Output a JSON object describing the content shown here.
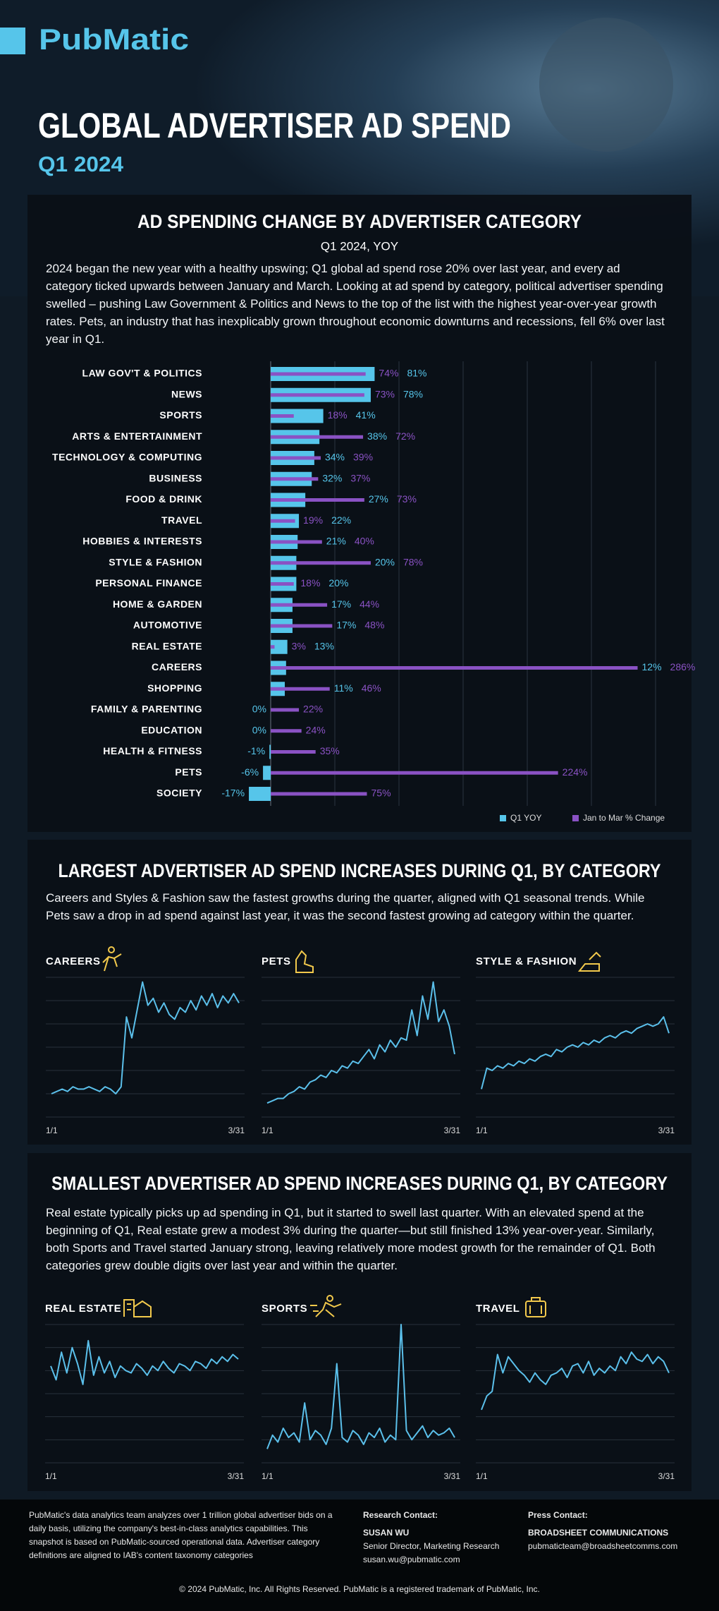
{
  "header": {
    "logo": "PubMatic",
    "title": "GLOBAL ADVERTISER AD SPEND",
    "subtitle": "Q1 2024"
  },
  "chart_data": [
    {
      "type": "hbar",
      "title": "AD SPENDING CHANGE BY ADVERTISER CATEGORY",
      "subtitle": "Q1 2024, YOY",
      "description": "2024 began the new year with a healthy upswing; Q1 global ad spend rose 20% over last year, and every ad category ticked upwards between January and March. Looking at ad spend by category, political advertiser spending swelled – pushing Law Government & Politics and News to the top of the list with the highest year-over-year growth rates. Pets, an industry that has inexplicably grown throughout economic downturns and recessions, fell 6% over last year in Q1.",
      "categories": [
        "LAW GOV'T & POLITICS",
        "NEWS",
        "SPORTS",
        "ARTS & ENTERTAINMENT",
        "TECHNOLOGY & COMPUTING",
        "BUSINESS",
        "FOOD & DRINK",
        "TRAVEL",
        "HOBBIES & INTERESTS",
        "STYLE & FASHION",
        "PERSONAL FINANCE",
        "HOME & GARDEN",
        "AUTOMOTIVE",
        "REAL ESTATE",
        "CAREERS",
        "SHOPPING",
        "FAMILY & PARENTING",
        "EDUCATION",
        "HEALTH & FITNESS",
        "PETS",
        "SOCIETY"
      ],
      "series": [
        {
          "name": "Q1 YOY",
          "color": "#56c5ea",
          "values": [
            81,
            78,
            41,
            38,
            34,
            32,
            27,
            22,
            21,
            20,
            20,
            17,
            17,
            13,
            12,
            11,
            0,
            0,
            -1,
            -6,
            -17
          ],
          "value_labels": [
            "81%",
            "78%",
            "41%",
            "38%",
            "34%",
            "32%",
            "27%",
            "22%",
            "21%",
            "20%",
            "20%",
            "17%",
            "17%",
            "13%",
            "12%",
            "11%",
            "0%",
            "0%",
            "-1%",
            "-6%",
            "-17%"
          ]
        },
        {
          "name": "Jan to Mar % Change",
          "color": "#8a52c4",
          "values": [
            74,
            73,
            18,
            72,
            39,
            37,
            73,
            19,
            40,
            78,
            18,
            44,
            48,
            3,
            286,
            46,
            22,
            24,
            35,
            224,
            75
          ],
          "value_labels": [
            "74%",
            "73%",
            "18%",
            "72%",
            "39%",
            "37%",
            "73%",
            "19%",
            "40%",
            "78%",
            "18%",
            "44%",
            "48%",
            "3%",
            "286%",
            "46%",
            "22%",
            "24%",
            "35%",
            "224%",
            "75%"
          ]
        }
      ],
      "xlim": [
        -50,
        300
      ],
      "xticks": [
        0,
        50,
        100,
        150,
        200,
        250,
        300
      ],
      "grid": true,
      "legend": "bottom-right"
    },
    {
      "type": "line",
      "title": "CAREERS",
      "color": "#5bc0eb",
      "ylim": [
        0,
        6
      ],
      "yticks": [
        0,
        1,
        2,
        3,
        4,
        5,
        6
      ],
      "grid": true,
      "categories": [
        "1/1",
        null,
        null,
        null,
        null,
        null,
        null,
        null,
        null,
        null,
        null,
        null,
        null,
        null,
        null,
        null,
        null,
        null,
        null,
        null,
        null,
        null,
        null,
        null,
        null,
        null,
        null,
        null,
        null,
        null,
        null,
        null,
        null,
        null,
        null,
        "3/31"
      ],
      "values": [
        1.0,
        1.1,
        1.2,
        1.1,
        1.3,
        1.2,
        1.2,
        1.3,
        1.2,
        1.1,
        1.3,
        1.2,
        1.0,
        1.3,
        4.3,
        3.4,
        4.6,
        5.8,
        4.8,
        5.1,
        4.5,
        4.9,
        4.4,
        4.2,
        4.7,
        4.5,
        5.0,
        4.6,
        5.2,
        4.8,
        5.3,
        4.7,
        5.2,
        4.9,
        5.3,
        4.9
      ]
    },
    {
      "type": "line",
      "title": "PETS",
      "color": "#5bc0eb",
      "ylim": [
        0,
        6
      ],
      "yticks": [
        0,
        1,
        2,
        3,
        4,
        5,
        6
      ],
      "grid": true,
      "categories": [
        "1/1",
        null,
        null,
        null,
        null,
        null,
        null,
        null,
        null,
        null,
        null,
        null,
        null,
        null,
        null,
        null,
        null,
        null,
        null,
        null,
        null,
        null,
        null,
        null,
        null,
        null,
        null,
        null,
        null,
        null,
        null,
        null,
        null,
        null,
        null,
        "3/31"
      ],
      "values": [
        0.6,
        0.7,
        0.8,
        0.8,
        1.0,
        1.1,
        1.3,
        1.2,
        1.5,
        1.6,
        1.8,
        1.7,
        2.0,
        1.9,
        2.2,
        2.1,
        2.4,
        2.3,
        2.6,
        2.9,
        2.5,
        3.1,
        2.8,
        3.3,
        3.0,
        3.4,
        3.3,
        4.6,
        3.5,
        5.2,
        4.2,
        5.8,
        4.1,
        4.6,
        3.9,
        2.7
      ]
    },
    {
      "type": "line",
      "title": "STYLE & FASHION",
      "color": "#5bc0eb",
      "ylim": [
        0,
        6
      ],
      "yticks": [
        0,
        1,
        2,
        3,
        4,
        5,
        6
      ],
      "grid": true,
      "categories": [
        "1/1",
        null,
        null,
        null,
        null,
        null,
        null,
        null,
        null,
        null,
        null,
        null,
        null,
        null,
        null,
        null,
        null,
        null,
        null,
        null,
        null,
        null,
        null,
        null,
        null,
        null,
        null,
        null,
        null,
        null,
        null,
        null,
        null,
        null,
        null,
        "3/31"
      ],
      "values": [
        1.2,
        2.1,
        2.0,
        2.2,
        2.1,
        2.3,
        2.2,
        2.4,
        2.3,
        2.5,
        2.4,
        2.6,
        2.7,
        2.6,
        2.9,
        2.8,
        3.0,
        3.1,
        3.0,
        3.2,
        3.1,
        3.3,
        3.2,
        3.4,
        3.5,
        3.4,
        3.6,
        3.7,
        3.6,
        3.8,
        3.9,
        4.0,
        3.9,
        4.0,
        4.3,
        3.6
      ]
    },
    {
      "type": "line",
      "title": "REAL ESTATE",
      "color": "#5bc0eb",
      "ylim": [
        0,
        6
      ],
      "yticks": [
        0,
        1,
        2,
        3,
        4,
        5,
        6
      ],
      "grid": true,
      "categories": [
        "1/1",
        null,
        null,
        null,
        null,
        null,
        null,
        null,
        null,
        null,
        null,
        null,
        null,
        null,
        null,
        null,
        null,
        null,
        null,
        null,
        null,
        null,
        null,
        null,
        null,
        null,
        null,
        null,
        null,
        null,
        null,
        null,
        null,
        null,
        null,
        "3/31"
      ],
      "values": [
        4.2,
        3.6,
        4.8,
        3.9,
        5.0,
        4.3,
        3.4,
        5.3,
        3.8,
        4.6,
        3.9,
        4.4,
        3.7,
        4.2,
        4.0,
        3.9,
        4.3,
        4.1,
        3.8,
        4.2,
        4.0,
        4.4,
        4.1,
        3.9,
        4.3,
        4.2,
        4.0,
        4.4,
        4.3,
        4.1,
        4.5,
        4.3,
        4.6,
        4.4,
        4.7,
        4.5
      ]
    },
    {
      "type": "line",
      "title": "SPORTS",
      "color": "#5bc0eb",
      "ylim": [
        0,
        6
      ],
      "yticks": [
        0,
        1,
        2,
        3,
        4,
        5,
        6
      ],
      "grid": true,
      "categories": [
        "1/1",
        null,
        null,
        null,
        null,
        null,
        null,
        null,
        null,
        null,
        null,
        null,
        null,
        null,
        null,
        null,
        null,
        null,
        null,
        null,
        null,
        null,
        null,
        null,
        null,
        null,
        null,
        null,
        null,
        null,
        null,
        null,
        null,
        null,
        null,
        "3/31"
      ],
      "values": [
        0.6,
        1.2,
        0.9,
        1.5,
        1.1,
        1.3,
        0.9,
        2.6,
        1.0,
        1.4,
        1.2,
        0.8,
        1.5,
        4.3,
        1.1,
        0.9,
        1.4,
        1.2,
        0.8,
        1.3,
        1.1,
        1.5,
        0.9,
        1.2,
        1.0,
        6.0,
        1.4,
        1.0,
        1.3,
        1.6,
        1.1,
        1.4,
        1.2,
        1.3,
        1.5,
        1.1
      ]
    },
    {
      "type": "line",
      "title": "TRAVEL",
      "color": "#5bc0eb",
      "ylim": [
        0,
        6
      ],
      "yticks": [
        0,
        1,
        2,
        3,
        4,
        5,
        6
      ],
      "grid": true,
      "categories": [
        "1/1",
        null,
        null,
        null,
        null,
        null,
        null,
        null,
        null,
        null,
        null,
        null,
        null,
        null,
        null,
        null,
        null,
        null,
        null,
        null,
        null,
        null,
        null,
        null,
        null,
        null,
        null,
        null,
        null,
        null,
        null,
        null,
        null,
        null,
        null,
        "3/31"
      ],
      "values": [
        2.3,
        2.9,
        3.1,
        4.7,
        3.9,
        4.6,
        4.3,
        4.0,
        3.8,
        3.5,
        3.9,
        3.6,
        3.4,
        3.8,
        3.9,
        4.1,
        3.7,
        4.2,
        4.3,
        3.9,
        4.4,
        3.8,
        4.1,
        3.9,
        4.2,
        4.0,
        4.6,
        4.3,
        4.8,
        4.5,
        4.4,
        4.7,
        4.3,
        4.6,
        4.4,
        3.9
      ]
    }
  ],
  "sections": [
    {
      "title": "LARGEST ADVERTISER AD SPEND INCREASES DURING Q1, BY CATEGORY",
      "text": "Careers and Styles & Fashion saw the fastest growths during the quarter, aligned with Q1 seasonal trends. While Pets saw a drop in ad spend against last year, it was the second fastest growing ad category within the quarter."
    },
    {
      "title": "SMALLEST ADVERTISER AD SPEND INCREASES DURING Q1, BY CATEGORY",
      "text": "Real estate typically picks up ad spending in Q1, but it started to swell last quarter. With an elevated spend at the beginning of Q1, Real estate grew a modest 3% during the quarter—but still finished 13% year-over-year. Similarly, both Sports and Travel started January strong, leaving relatively more modest growth for the remainder of Q1. Both categories grew double digits over last year and within the quarter."
    }
  ],
  "footer": {
    "about": "PubMatic's data analytics team analyzes over 1 trillion global advertiser bids on a daily basis, utilizing the company's best-in-class analytics capabilities. This snapshot is based on PubMatic-sourced operational data. Advertiser category definitions are aligned to IAB's content taxonomy categories",
    "research": {
      "heading": "Research Contact:",
      "name": "SUSAN WU",
      "role": "Senior Director, Marketing Research",
      "email": "susan.wu@pubmatic.com"
    },
    "press": {
      "heading": "Press Contact:",
      "name": "BROADSHEET COMMUNICATIONS",
      "email": "pubmaticteam@broadsheetcomms.com"
    },
    "copyright": "© 2024 PubMatic, Inc. All Rights Reserved. PubMatic is a registered trademark of PubMatic, Inc."
  }
}
